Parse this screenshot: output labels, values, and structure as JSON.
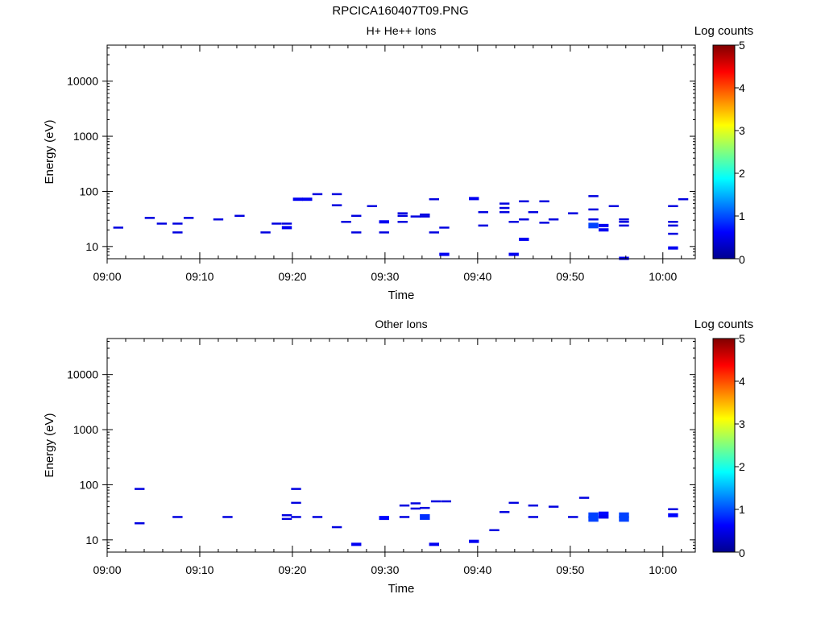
{
  "figure_title": "RPCICA160407T09.PNG",
  "colorbar": {
    "label": "Log counts",
    "ticks": [
      "0",
      "1",
      "2",
      "3",
      "4",
      "5"
    ]
  },
  "chart_data": [
    {
      "type": "heatmap",
      "title": "H+ He++ Ions",
      "xlabel": "Time",
      "ylabel": "Energy (eV)",
      "x_ticks": [
        "09:00",
        "09:10",
        "09:20",
        "09:30",
        "09:40",
        "09:50",
        "10:00"
      ],
      "y_ticks": [
        "10",
        "100",
        "1000",
        "10000"
      ],
      "y_scale": "log",
      "xlim_minutes": [
        0,
        63.5
      ],
      "ylim": [
        6,
        45000
      ],
      "colorbar_range": [
        0,
        5
      ],
      "points": [
        {
          "t": 1.2,
          "e": 22,
          "c": 0.3
        },
        {
          "t": 4.6,
          "e": 33,
          "c": 0.3
        },
        {
          "t": 5.9,
          "e": 26,
          "c": 0.3
        },
        {
          "t": 7.6,
          "e": 18,
          "c": 0.3
        },
        {
          "t": 7.6,
          "e": 26,
          "c": 0.3
        },
        {
          "t": 8.8,
          "e": 33,
          "c": 0.3
        },
        {
          "t": 12.0,
          "e": 31,
          "c": 0.3
        },
        {
          "t": 14.3,
          "e": 36,
          "c": 0.3
        },
        {
          "t": 17.1,
          "e": 18,
          "c": 0.3
        },
        {
          "t": 18.3,
          "e": 26,
          "c": 0.3
        },
        {
          "t": 19.4,
          "e": 22,
          "c": 0.4
        },
        {
          "t": 19.4,
          "e": 26,
          "c": 0.3
        },
        {
          "t": 20.6,
          "e": 72,
          "c": 0.4
        },
        {
          "t": 21.6,
          "e": 72,
          "c": 0.4
        },
        {
          "t": 22.7,
          "e": 89,
          "c": 0.3
        },
        {
          "t": 24.8,
          "e": 89,
          "c": 0.3
        },
        {
          "t": 24.8,
          "e": 56,
          "c": 0.3
        },
        {
          "t": 25.8,
          "e": 28,
          "c": 0.3
        },
        {
          "t": 26.9,
          "e": 36,
          "c": 0.3
        },
        {
          "t": 26.9,
          "e": 18,
          "c": 0.3
        },
        {
          "t": 28.6,
          "e": 54,
          "c": 0.3
        },
        {
          "t": 29.9,
          "e": 28,
          "c": 0.4
        },
        {
          "t": 29.9,
          "e": 18,
          "c": 0.3
        },
        {
          "t": 31.9,
          "e": 36,
          "c": 0.3
        },
        {
          "t": 31.9,
          "e": 28,
          "c": 0.3
        },
        {
          "t": 31.9,
          "e": 40,
          "c": 0.3
        },
        {
          "t": 33.3,
          "e": 35,
          "c": 0.3
        },
        {
          "t": 34.3,
          "e": 38,
          "c": 0.3
        },
        {
          "t": 34.3,
          "e": 35,
          "c": 0.3
        },
        {
          "t": 35.3,
          "e": 72,
          "c": 0.3
        },
        {
          "t": 35.3,
          "e": 18,
          "c": 0.3
        },
        {
          "t": 36.4,
          "e": 22,
          "c": 0.3
        },
        {
          "t": 36.4,
          "e": 7.2,
          "c": 0.4
        },
        {
          "t": 39.6,
          "e": 74,
          "c": 0.4
        },
        {
          "t": 40.6,
          "e": 42,
          "c": 0.3
        },
        {
          "t": 40.6,
          "e": 24,
          "c": 0.3
        },
        {
          "t": 42.9,
          "e": 60,
          "c": 0.3
        },
        {
          "t": 42.9,
          "e": 50,
          "c": 0.3
        },
        {
          "t": 42.9,
          "e": 42,
          "c": 0.3
        },
        {
          "t": 43.9,
          "e": 28,
          "c": 0.3
        },
        {
          "t": 43.9,
          "e": 7.2,
          "c": 0.4
        },
        {
          "t": 45.0,
          "e": 66,
          "c": 0.3
        },
        {
          "t": 45.0,
          "e": 31,
          "c": 0.3
        },
        {
          "t": 45.0,
          "e": 13.5,
          "c": 0.4
        },
        {
          "t": 46.0,
          "e": 42,
          "c": 0.3
        },
        {
          "t": 47.2,
          "e": 66,
          "c": 0.3
        },
        {
          "t": 47.2,
          "e": 27,
          "c": 0.3
        },
        {
          "t": 48.2,
          "e": 31,
          "c": 0.3
        },
        {
          "t": 50.3,
          "e": 40,
          "c": 0.3
        },
        {
          "t": 52.5,
          "e": 82,
          "c": 0.3
        },
        {
          "t": 52.5,
          "e": 47,
          "c": 0.3
        },
        {
          "t": 52.5,
          "e": 31,
          "c": 0.3
        },
        {
          "t": 52.5,
          "e": 24,
          "c": 0.8
        },
        {
          "t": 53.6,
          "e": 24,
          "c": 0.4
        },
        {
          "t": 53.6,
          "e": 20,
          "c": 0.4
        },
        {
          "t": 54.7,
          "e": 54,
          "c": 0.3
        },
        {
          "t": 55.8,
          "e": 31,
          "c": 0.3
        },
        {
          "t": 55.8,
          "e": 28,
          "c": 0.3
        },
        {
          "t": 55.8,
          "e": 24,
          "c": 0.3
        },
        {
          "t": 55.8,
          "e": 6.1,
          "c": 0.4
        },
        {
          "t": 61.1,
          "e": 54,
          "c": 0.3
        },
        {
          "t": 61.1,
          "e": 28,
          "c": 0.3
        },
        {
          "t": 61.1,
          "e": 24,
          "c": 0.3
        },
        {
          "t": 61.1,
          "e": 17,
          "c": 0.3
        },
        {
          "t": 61.1,
          "e": 9.4,
          "c": 0.4
        },
        {
          "t": 62.2,
          "e": 72,
          "c": 0.3
        }
      ]
    },
    {
      "type": "heatmap",
      "title": "Other Ions",
      "xlabel": "Time",
      "ylabel": "Energy (eV)",
      "x_ticks": [
        "09:00",
        "09:10",
        "09:20",
        "09:30",
        "09:40",
        "09:50",
        "10:00"
      ],
      "y_ticks": [
        "10",
        "100",
        "1000",
        "10000"
      ],
      "y_scale": "log",
      "xlim_minutes": [
        0,
        63.5
      ],
      "ylim": [
        6,
        45000
      ],
      "colorbar_range": [
        0,
        5
      ],
      "points": [
        {
          "t": 3.5,
          "e": 84,
          "c": 0.3
        },
        {
          "t": 3.5,
          "e": 20,
          "c": 0.3
        },
        {
          "t": 7.6,
          "e": 26,
          "c": 0.3
        },
        {
          "t": 13.0,
          "e": 26,
          "c": 0.3
        },
        {
          "t": 19.4,
          "e": 28,
          "c": 0.3
        },
        {
          "t": 19.4,
          "e": 24,
          "c": 0.3
        },
        {
          "t": 20.4,
          "e": 84,
          "c": 0.3
        },
        {
          "t": 20.4,
          "e": 47,
          "c": 0.3
        },
        {
          "t": 20.4,
          "e": 26,
          "c": 0.3
        },
        {
          "t": 22.7,
          "e": 26,
          "c": 0.3
        },
        {
          "t": 24.8,
          "e": 17,
          "c": 0.3
        },
        {
          "t": 26.9,
          "e": 8.3,
          "c": 0.4
        },
        {
          "t": 29.9,
          "e": 25,
          "c": 0.5
        },
        {
          "t": 32.1,
          "e": 42,
          "c": 0.3
        },
        {
          "t": 32.1,
          "e": 26,
          "c": 0.3
        },
        {
          "t": 33.3,
          "e": 46,
          "c": 0.3
        },
        {
          "t": 33.3,
          "e": 37,
          "c": 0.3
        },
        {
          "t": 34.3,
          "e": 38,
          "c": 0.3
        },
        {
          "t": 34.3,
          "e": 26,
          "c": 0.7
        },
        {
          "t": 35.3,
          "e": 8.3,
          "c": 0.4
        },
        {
          "t": 35.5,
          "e": 50,
          "c": 0.3
        },
        {
          "t": 36.6,
          "e": 50,
          "c": 0.3
        },
        {
          "t": 39.6,
          "e": 9.4,
          "c": 0.4
        },
        {
          "t": 41.8,
          "e": 15,
          "c": 0.3
        },
        {
          "t": 42.9,
          "e": 32,
          "c": 0.3
        },
        {
          "t": 43.9,
          "e": 47,
          "c": 0.3
        },
        {
          "t": 46.0,
          "e": 42,
          "c": 0.3
        },
        {
          "t": 46.0,
          "e": 26,
          "c": 0.3
        },
        {
          "t": 48.2,
          "e": 40,
          "c": 0.3
        },
        {
          "t": 50.3,
          "e": 26,
          "c": 0.3
        },
        {
          "t": 51.5,
          "e": 58,
          "c": 0.3
        },
        {
          "t": 52.5,
          "e": 28,
          "c": 0.8
        },
        {
          "t": 52.5,
          "e": 24,
          "c": 0.8
        },
        {
          "t": 53.6,
          "e": 30,
          "c": 0.5
        },
        {
          "t": 53.6,
          "e": 26,
          "c": 0.4
        },
        {
          "t": 55.8,
          "e": 28,
          "c": 0.8
        },
        {
          "t": 55.8,
          "e": 24,
          "c": 0.8
        },
        {
          "t": 61.1,
          "e": 36,
          "c": 0.3
        },
        {
          "t": 61.1,
          "e": 28,
          "c": 0.5
        }
      ]
    }
  ]
}
